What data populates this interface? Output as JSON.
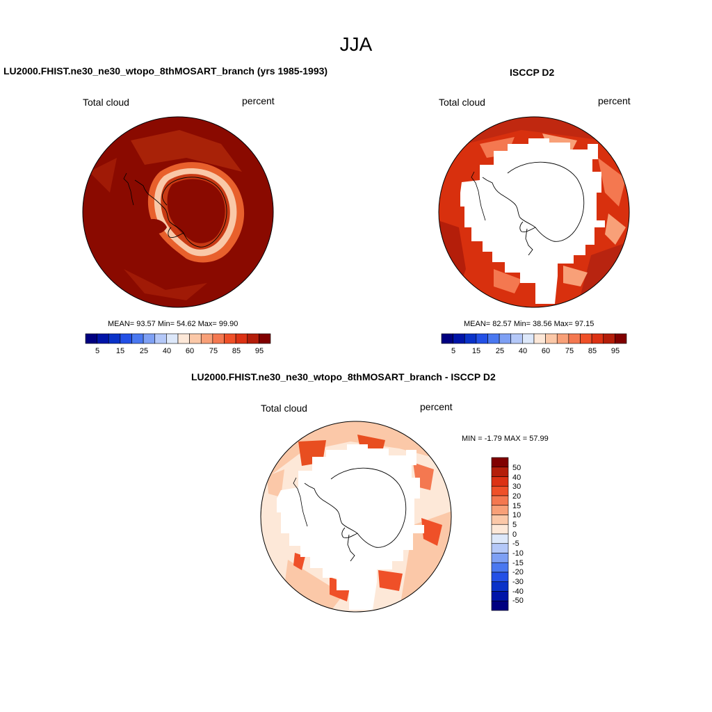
{
  "page_title": "JJA",
  "panels": [
    {
      "title": "LU2000.FHIST.ne30_ne30_wtopo_8thMOSART_branch (yrs 1985-1993)",
      "left_label": "Total cloud",
      "right_label": "percent",
      "stats": "MEAN=  93.57  Min=  54.62  Max=  99.90"
    },
    {
      "title": "ISCCP D2",
      "left_label": "Total cloud",
      "right_label": "percent",
      "stats": "MEAN=  82.57  Min=  38.56  Max=  97.15"
    },
    {
      "title": "LU2000.FHIST.ne30_ne30_wtopo_8thMOSART_branch - ISCCP D2",
      "left_label": "Total cloud",
      "right_label": "percent",
      "stats": "MIN =  -1.79 MAX =  57.99"
    }
  ],
  "colorbar_horizontal": {
    "labels": [
      "5",
      "15",
      "25",
      "40",
      "60",
      "75",
      "85",
      "95"
    ],
    "colors": [
      "#000080",
      "#0014a8",
      "#0a32c8",
      "#2350e6",
      "#4a78f0",
      "#7ea0f4",
      "#b4c8f8",
      "#dde8fa",
      "#fde8d8",
      "#fbc8a8",
      "#f8a078",
      "#f47850",
      "#ef5028",
      "#dc3214",
      "#b41e0a",
      "#800000"
    ]
  },
  "colorbar_vertical": {
    "labels": [
      "50",
      "40",
      "30",
      "20",
      "15",
      "10",
      "5",
      "0",
      "-5",
      "-10",
      "-15",
      "-20",
      "-30",
      "-40",
      "-50"
    ],
    "colors": [
      "#800000",
      "#b41e0a",
      "#dc3214",
      "#ef5028",
      "#f47850",
      "#f8a078",
      "#fbc8a8",
      "#fde8d8",
      "#dde8fa",
      "#b4c8f8",
      "#7ea0f4",
      "#4a78f0",
      "#2350e6",
      "#0a32c8",
      "#0014a8",
      "#000080"
    ]
  }
}
